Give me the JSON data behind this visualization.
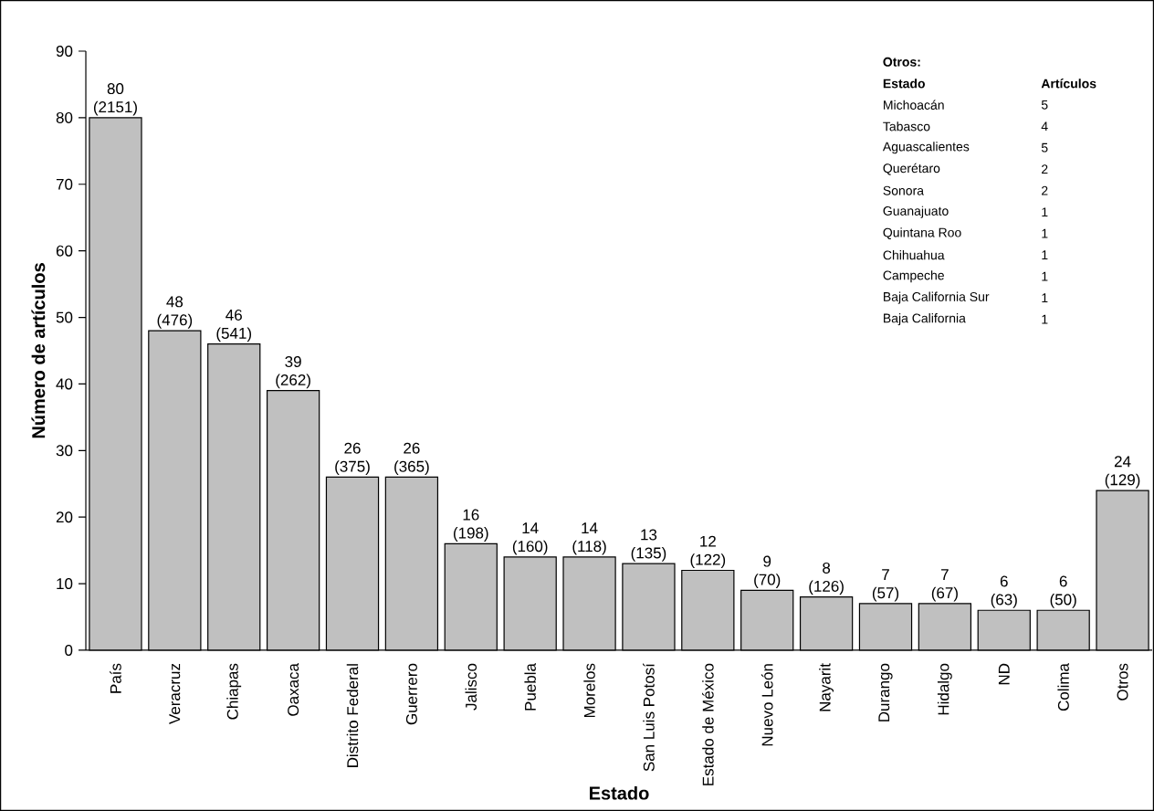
{
  "chart_data": {
    "type": "bar",
    "xlabel": "Estado",
    "ylabel": "Número de artículos",
    "categories": [
      "País",
      "Veracruz",
      "Chiapas",
      "Oaxaca",
      "Distrito Federal",
      "Guerrero",
      "Jalisco",
      "Puebla",
      "Morelos",
      "San Luis Potosí",
      "Estado de México",
      "Nuevo León",
      "Nayarit",
      "Durango",
      "Hidalgo",
      "ND",
      "Colima",
      "Otros"
    ],
    "values": [
      80,
      48,
      46,
      39,
      26,
      26,
      16,
      14,
      14,
      13,
      12,
      9,
      8,
      7,
      7,
      6,
      6,
      24
    ],
    "value_labels": [
      "80 (2151)",
      "48 (476)",
      "46 (541)",
      "39 (262)",
      "26 (375)",
      "26 (365)",
      "16 (198)",
      "14 (160)",
      "14 (118)",
      "13 (135)",
      "12 (122)",
      "9 (70)",
      "8 (126)",
      "7 (57)",
      "7 (67)",
      "6 (63)",
      "6 (50)",
      "24 (129)"
    ],
    "color": "#c0c0c0",
    "ylim": [
      0,
      90
    ],
    "yticks": [
      0,
      10,
      20,
      30,
      40,
      50,
      60,
      70,
      80,
      90
    ],
    "annotations": [
      "Otros:",
      "Estado",
      "Artículos",
      "Michoacán",
      "5",
      "Tabasco",
      "4",
      "Aguascalientes",
      "5",
      "Querétaro",
      "2",
      "Sonora",
      "2",
      "Guanajuato",
      "1",
      "Quintana Roo",
      "1",
      "Chihuahua",
      "1",
      "Campeche",
      "1",
      "Baja California Sur",
      "1",
      "Baja California",
      "1"
    ]
  }
}
